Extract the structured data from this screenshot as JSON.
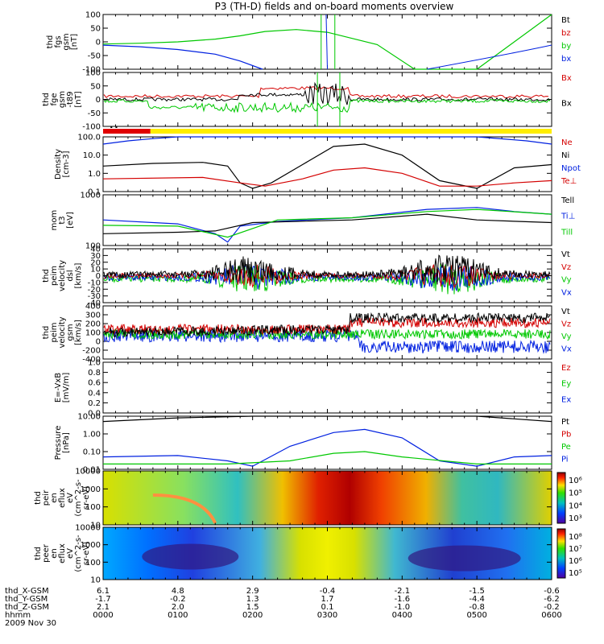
{
  "title": "P3 (TH-D) fields and on-board moments overview",
  "date_label": "2009 Nov 30",
  "colors": {
    "black": "#000000",
    "red": "#d40000",
    "green": "#00c800",
    "blue": "#0020e0",
    "yellow": "#ffee00",
    "bar_red": "#e00000"
  },
  "chart_data": [
    {
      "type": "line",
      "ylabel": [
        "thd",
        "fgs",
        "gsm",
        "[nT]"
      ],
      "ylim": [
        -100,
        100
      ],
      "yticks": [
        "100",
        "50",
        "0",
        "-50",
        "-100"
      ],
      "legend": [
        {
          "label": "Bt",
          "color": "#000000"
        },
        {
          "label": "bz",
          "color": "#d40000"
        },
        {
          "label": "by",
          "color": "#00c800"
        },
        {
          "label": "bx",
          "color": "#0020e0"
        }
      ],
      "series": [
        {
          "name": "by",
          "x": [
            0,
            30,
            60,
            90,
            110,
            130,
            155,
            180,
            220,
            250,
            300,
            360
          ],
          "y": [
            -8,
            -5,
            0,
            10,
            22,
            38,
            45,
            35,
            -10,
            -100,
            -100,
            100
          ]
        },
        {
          "name": "bx",
          "x": [
            0,
            30,
            60,
            90,
            110,
            128
          ],
          "y": [
            -12,
            -18,
            -28,
            -45,
            -70,
            -100
          ]
        }
      ]
    },
    {
      "type": "line",
      "ylabel": [
        "thd",
        "fge",
        "gsm",
        "-t89",
        "[nT]"
      ],
      "ylim": [
        -120,
        120
      ],
      "yticks": [
        "100",
        "50",
        "0",
        "-50",
        "-100"
      ],
      "legend": [
        {
          "label": "Bx",
          "color": "#d40000"
        },
        {
          "label": "Bx",
          "color": "#000000"
        }
      ]
    },
    {
      "type": "bar",
      "description_bar": "mode-bar",
      "segments": [
        {
          "color": "#e00000",
          "x0": 0,
          "x1": 38
        },
        {
          "color": "#ffee00",
          "x0": 38,
          "x1": 360
        }
      ]
    },
    {
      "type": "line",
      "ylabel": [
        "Density",
        "[cm-3]"
      ],
      "ylim": [
        0.1,
        100
      ],
      "yticks": [
        "100.0",
        "10.0",
        "1.0",
        "0.1"
      ],
      "log": true,
      "legend": [
        {
          "label": "Ne",
          "color": "#d40000"
        },
        {
          "label": "Ni",
          "color": "#000000"
        },
        {
          "label": "Npot",
          "color": "#0020e0"
        },
        {
          "label": "Te⊥",
          "color": "#d40000"
        }
      ],
      "series": [
        {
          "name": "Ni",
          "x": [
            0,
            40,
            80,
            100,
            110,
            120,
            135,
            160,
            185,
            210,
            240,
            270,
            300,
            330,
            360
          ],
          "y": [
            2.5,
            3.5,
            4,
            2.5,
            0.3,
            0.15,
            0.3,
            3,
            30,
            40,
            10,
            0.4,
            0.15,
            2,
            3
          ]
        },
        {
          "name": "Ne",
          "x": [
            0,
            80,
            110,
            130,
            160,
            185,
            210,
            240,
            270,
            300,
            330,
            360
          ],
          "y": [
            0.5,
            0.6,
            0.3,
            0.2,
            0.5,
            1.5,
            2,
            1,
            0.2,
            0.2,
            0.3,
            0.4
          ]
        },
        {
          "name": "Npot",
          "x": [
            0,
            20,
            40,
            60,
            80,
            100,
            200,
            300,
            340,
            360
          ],
          "y": [
            40,
            60,
            80,
            100,
            100,
            100,
            100,
            100,
            60,
            40
          ]
        }
      ]
    },
    {
      "type": "line",
      "ylabel": [
        "mom",
        "t3",
        "[eV]"
      ],
      "ylim": [
        30,
        2000
      ],
      "yticks": [
        "1000",
        "100"
      ],
      "log": true,
      "legend": [
        {
          "label": "Tell",
          "color": "#000000"
        },
        {
          "label": "Ti⊥",
          "color": "#0020e0"
        },
        {
          "label": "Till",
          "color": "#00c800"
        }
      ],
      "series": [
        {
          "name": "Ti⊥",
          "x": [
            0,
            60,
            90,
            100,
            110,
            140,
            200,
            260,
            300,
            330,
            360
          ],
          "y": [
            250,
            180,
            80,
            40,
            150,
            220,
            300,
            600,
            700,
            500,
            400
          ]
        },
        {
          "name": "Tell",
          "x": [
            0,
            60,
            90,
            120,
            200,
            260,
            300,
            360
          ],
          "y": [
            80,
            90,
            100,
            200,
            250,
            400,
            250,
            200
          ]
        },
        {
          "name": "Till",
          "x": [
            0,
            60,
            100,
            140,
            200,
            260,
            300,
            360
          ],
          "y": [
            160,
            150,
            60,
            250,
            300,
            500,
            600,
            400
          ]
        }
      ]
    },
    {
      "type": "line",
      "ylabel": [
        "thd",
        "peim",
        "velocity",
        "dsl",
        "[km/s]"
      ],
      "ylim": [
        -40,
        40
      ],
      "yticks": [
        "40",
        "30",
        "20",
        "10",
        "0",
        "-10",
        "-20",
        "-30",
        "-40"
      ],
      "legend": [
        {
          "label": "Vt",
          "color": "#000000"
        },
        {
          "label": "Vz",
          "color": "#d40000"
        },
        {
          "label": "Vy",
          "color": "#00c800"
        },
        {
          "label": "Vx",
          "color": "#0020e0"
        }
      ]
    },
    {
      "type": "line",
      "ylabel": [
        "thd",
        "peim",
        "velocity",
        "gsm",
        "[km/s]"
      ],
      "ylim": [
        -400,
        400
      ],
      "yticks": [
        "400",
        "300",
        "200",
        "100",
        "0",
        "-200",
        "-400"
      ],
      "legend": [
        {
          "label": "Vt",
          "color": "#000000"
        },
        {
          "label": "Vz",
          "color": "#d40000"
        },
        {
          "label": "Vy",
          "color": "#00c800"
        },
        {
          "label": "Vx",
          "color": "#0020e0"
        }
      ]
    },
    {
      "type": "line",
      "ylabel": [
        "E=-VxB",
        "[mV/m]"
      ],
      "ylim": [
        0,
        1
      ],
      "yticks": [
        "1.0",
        "0.8",
        "0.6",
        "0.4",
        "0.2",
        "0.0"
      ],
      "legend": [
        {
          "label": "Ez",
          "color": "#d40000"
        },
        {
          "label": "Ey",
          "color": "#00c800"
        },
        {
          "label": "Ex",
          "color": "#0020e0"
        }
      ]
    },
    {
      "type": "line",
      "ylabel": [
        "Pressure",
        "[nPa]"
      ],
      "ylim": [
        0.01,
        10
      ],
      "yticks": [
        "10.00",
        "1.00",
        "0.10",
        "0.01"
      ],
      "log": true,
      "legend": [
        {
          "label": "Pt",
          "color": "#000000"
        },
        {
          "label": "Pb",
          "color": "#d40000"
        },
        {
          "label": "Pe",
          "color": "#00c800"
        },
        {
          "label": "Pi",
          "color": "#0020e0"
        }
      ],
      "series": [
        {
          "name": "Pt",
          "x": [
            0,
            60,
            120,
            150,
            210,
            270,
            300,
            360
          ],
          "y": [
            5,
            8,
            10,
            12,
            12,
            12,
            10,
            5
          ]
        },
        {
          "name": "Pi",
          "x": [
            0,
            60,
            100,
            120,
            150,
            185,
            210,
            240,
            270,
            300,
            330,
            360
          ],
          "y": [
            0.05,
            0.06,
            0.03,
            0.015,
            0.2,
            1.2,
            1.8,
            0.6,
            0.03,
            0.015,
            0.05,
            0.06
          ]
        },
        {
          "name": "Pe",
          "x": [
            0,
            100,
            150,
            185,
            210,
            240,
            300,
            360
          ],
          "y": [
            0.02,
            0.02,
            0.03,
            0.08,
            0.1,
            0.05,
            0.02,
            0.02
          ]
        }
      ]
    },
    {
      "type": "heatmap",
      "ylabel": [
        "thd",
        "peir",
        "en",
        "eflux",
        "eV",
        "(cm^2-s-",
        "sr-eV)"
      ],
      "yticks": [
        "10000",
        "1000",
        "100",
        "10"
      ],
      "colorbar_ticks": [
        "10⁶",
        "10⁵",
        "10⁴",
        "10³"
      ]
    },
    {
      "type": "heatmap",
      "ylabel": [
        "thd",
        "peer",
        "en",
        "eflux",
        "eV",
        "(cm^2-s-",
        "sr-eV)"
      ],
      "yticks": [
        "10000",
        "1000",
        "100",
        "10"
      ],
      "colorbar_ticks": [
        "10⁸",
        "10⁷",
        "10⁶",
        "10⁵"
      ]
    }
  ],
  "footer": {
    "rows": [
      {
        "label": "thd_X-GSM",
        "values": [
          "6.1",
          "4.8",
          "2.9",
          "-0.4",
          "-2.1",
          "-1.5",
          "-0.6"
        ]
      },
      {
        "label": "thd_Y-GSM",
        "values": [
          "-1.7",
          "-0.2",
          "1.3",
          "1.7",
          "-1.6",
          "-4.4",
          "-6.2"
        ]
      },
      {
        "label": "thd_Z-GSM",
        "values": [
          "2.1",
          "2.0",
          "1.5",
          "0.1",
          "-1.0",
          "-0.8",
          "-0.2"
        ]
      },
      {
        "label": "hhmm",
        "values": [
          "0000",
          "0100",
          "0200",
          "0300",
          "0400",
          "0500",
          "0600"
        ]
      }
    ]
  }
}
